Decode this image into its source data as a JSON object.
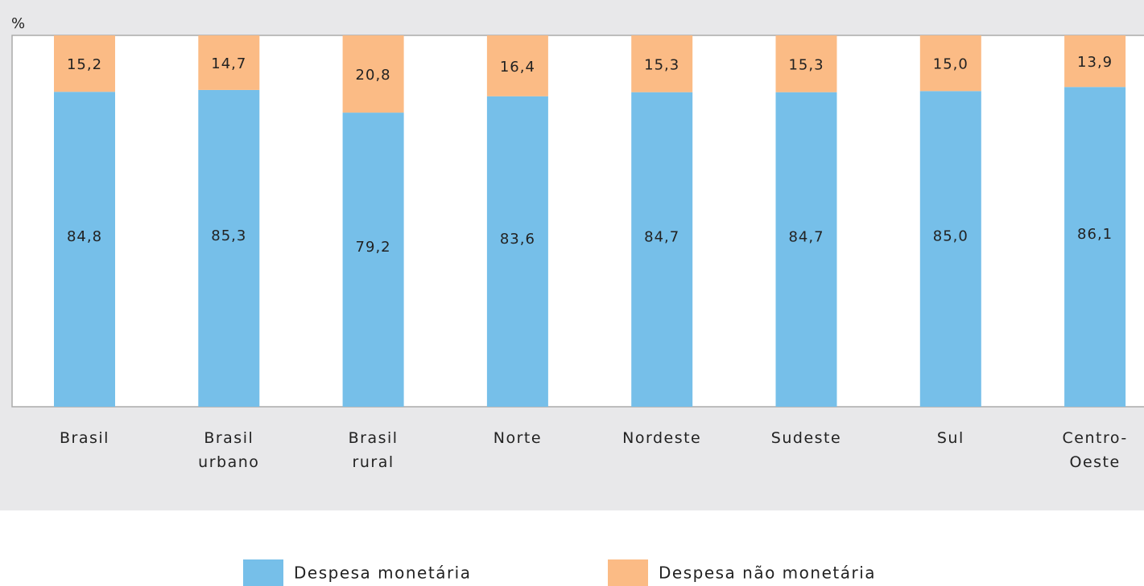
{
  "chart_data": {
    "type": "stacked_bar",
    "unit_label": "%",
    "categories": [
      "Brasil",
      "Brasil urbano",
      "Brasil rural",
      "Norte",
      "Nordeste",
      "Sudeste",
      "Sul",
      "Centro-Oeste"
    ],
    "series": [
      {
        "name": "Despesa monetária",
        "color": "#76bfe9",
        "values": [
          84.8,
          85.3,
          79.2,
          83.6,
          84.7,
          84.7,
          85.0,
          86.1
        ],
        "value_labels": [
          "84,8",
          "85,3",
          "79,2",
          "83,6",
          "84,7",
          "84,7",
          "85,0",
          "86,1"
        ]
      },
      {
        "name": "Despesa não monetária",
        "color": "#fbbb85",
        "values": [
          15.2,
          14.7,
          20.8,
          16.4,
          15.3,
          15.3,
          15.0,
          13.9
        ],
        "value_labels": [
          "15,2",
          "14,7",
          "20,8",
          "16,4",
          "15,3",
          "15,3",
          "15,0",
          "13,9"
        ]
      }
    ],
    "ylim": [
      0,
      100
    ]
  }
}
